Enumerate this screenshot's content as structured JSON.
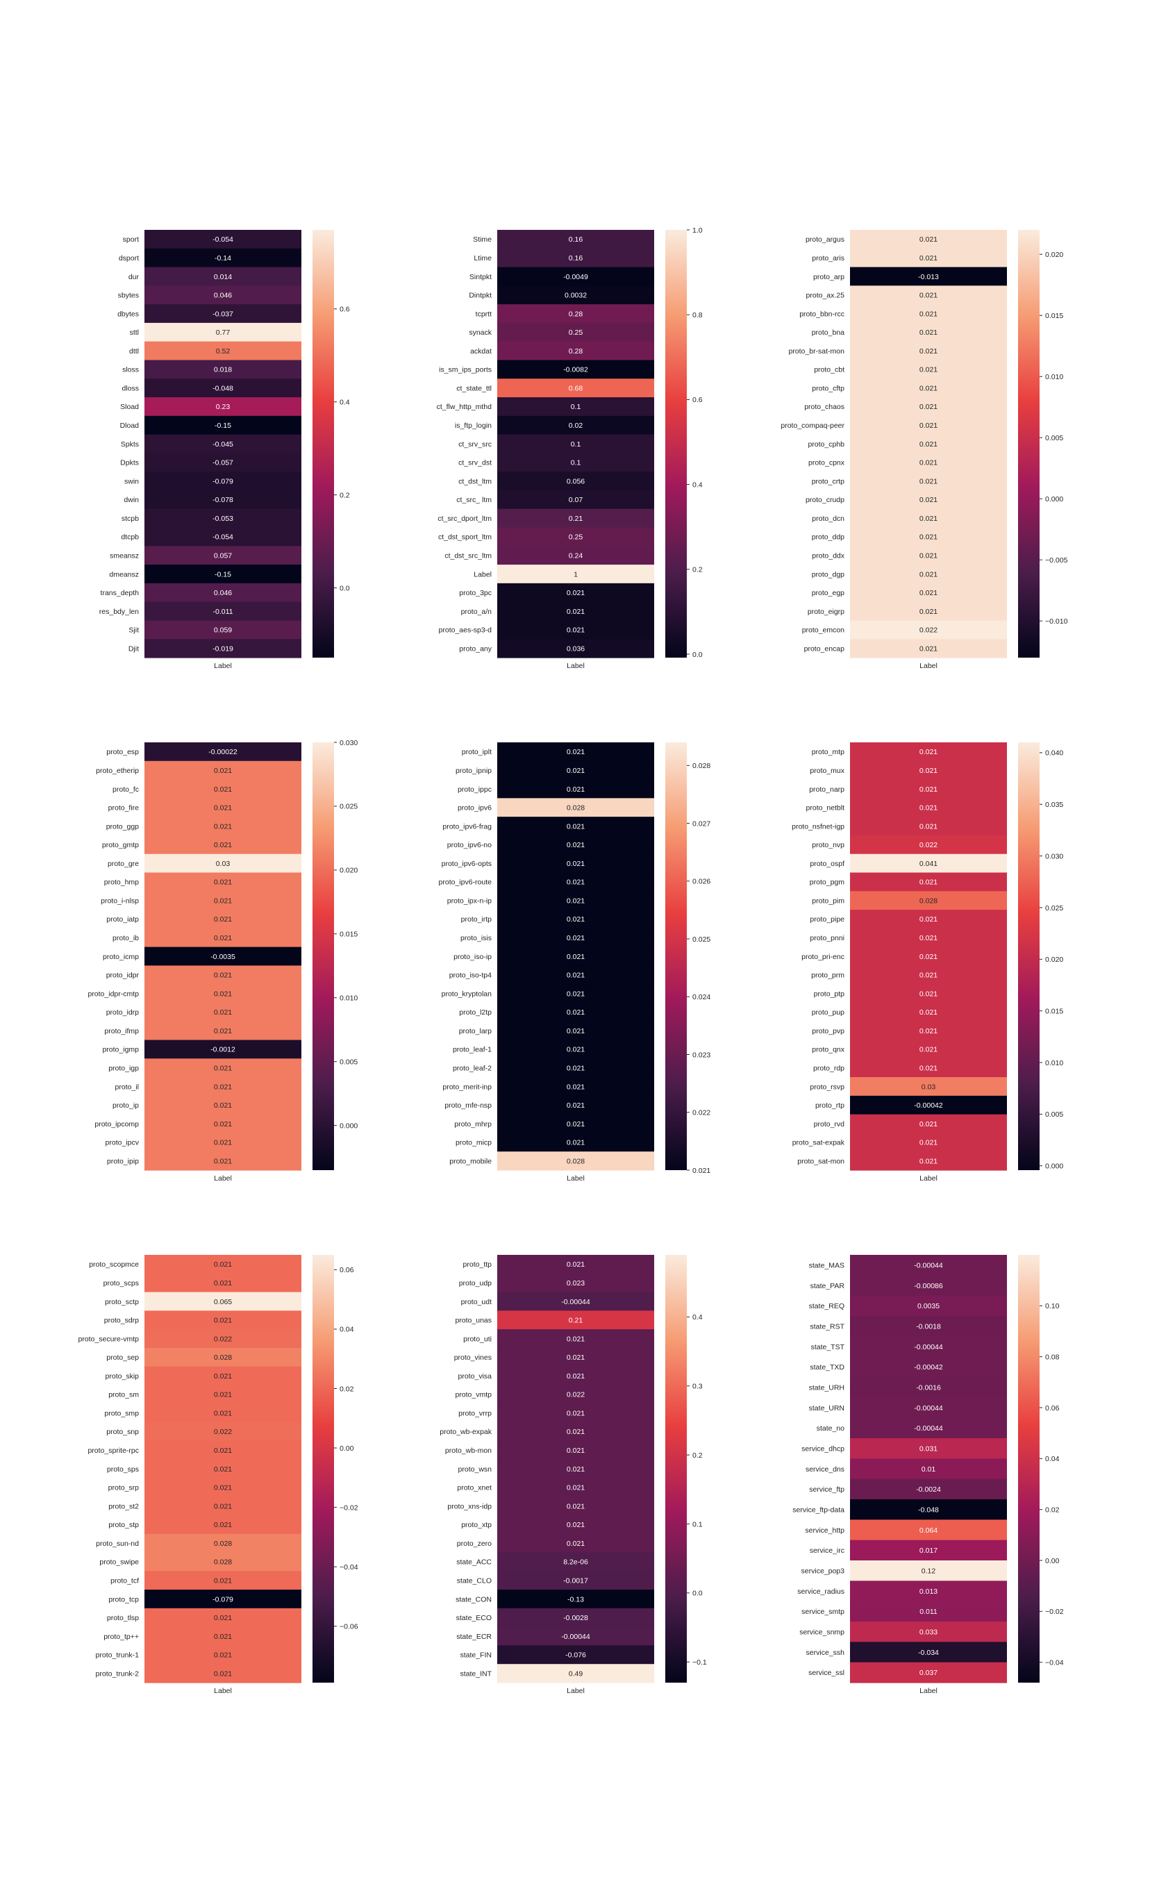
{
  "colormap": [
    "#03051a",
    "#4c1d4b",
    "#a11a5b",
    "#e83f3f",
    "#f69c73",
    "#faebdd"
  ],
  "chart_data": [
    {
      "type": "heatmap",
      "xlabel": "Label",
      "rows": [
        "sport",
        "dsport",
        "dur",
        "sbytes",
        "dbytes",
        "sttl",
        "dttl",
        "sloss",
        "dloss",
        "Sload",
        "Dload",
        "Spkts",
        "Dpkts",
        "swin",
        "dwin",
        "stcpb",
        "dtcpb",
        "smeansz",
        "dmeansz",
        "trans_depth",
        "res_bdy_len",
        "Sjit",
        "Djit"
      ],
      "values": [
        -0.054,
        -0.14,
        0.014,
        0.046,
        -0.037,
        0.77,
        0.52,
        0.018,
        -0.048,
        0.23,
        -0.15,
        -0.045,
        -0.057,
        -0.079,
        -0.078,
        -0.053,
        -0.054,
        0.057,
        -0.15,
        0.046,
        -0.011,
        0.059,
        -0.019
      ],
      "labels": [
        "-0.054",
        "-0.14",
        "0.014",
        "0.046",
        "-0.037",
        "0.77",
        "0.52",
        "0.018",
        "-0.048",
        "0.23",
        "-0.15",
        "-0.045",
        "-0.057",
        "-0.079",
        "-0.078",
        "-0.053",
        "-0.054",
        "0.057",
        "-0.15",
        "0.046",
        "-0.011",
        "0.059",
        "-0.019"
      ],
      "vmin": -0.15,
      "vmax": 0.77,
      "ticks": [
        0.0,
        0.2,
        0.4,
        0.6
      ],
      "tick_labels": [
        "0.0",
        "0.2",
        "0.4",
        "0.6"
      ]
    },
    {
      "type": "heatmap",
      "xlabel": "Label",
      "rows": [
        "Stime",
        "Ltime",
        "Sintpkt",
        "Dintpkt",
        "tcprtt",
        "synack",
        "ackdat",
        "is_sm_ips_ports",
        "ct_state_ttl",
        "ct_flw_http_mthd",
        "is_ftp_login",
        "ct_srv_src",
        "ct_srv_dst",
        "ct_dst_ltm",
        "ct_src_ ltm",
        "ct_src_dport_ltm",
        "ct_dst_sport_ltm",
        "ct_dst_src_ltm",
        "Label",
        "proto_3pc",
        "proto_a/n",
        "proto_aes-sp3-d",
        "proto_any"
      ],
      "values": [
        0.16,
        0.16,
        -0.0049,
        0.0032,
        0.28,
        0.25,
        0.28,
        -0.0082,
        0.68,
        0.1,
        0.02,
        0.1,
        0.1,
        0.056,
        0.07,
        0.21,
        0.25,
        0.24,
        1,
        0.021,
        0.021,
        0.021,
        0.036
      ],
      "labels": [
        "0.16",
        "0.16",
        "-0.0049",
        "0.0032",
        "0.28",
        "0.25",
        "0.28",
        "-0.0082",
        "0.68",
        "0.1",
        "0.02",
        "0.1",
        "0.1",
        "0.056",
        "0.07",
        "0.21",
        "0.25",
        "0.24",
        "1",
        "0.021",
        "0.021",
        "0.021",
        "0.036"
      ],
      "vmin": -0.0082,
      "vmax": 1.0,
      "ticks": [
        0.0,
        0.2,
        0.4,
        0.6,
        0.8,
        1.0
      ],
      "tick_labels": [
        "0.0",
        "0.2",
        "0.4",
        "0.6",
        "0.8",
        "1.0"
      ]
    },
    {
      "type": "heatmap",
      "xlabel": "Label",
      "rows": [
        "proto_argus",
        "proto_aris",
        "proto_arp",
        "proto_ax.25",
        "proto_bbn-rcc",
        "proto_bna",
        "proto_br-sat-mon",
        "proto_cbt",
        "proto_cftp",
        "proto_chaos",
        "proto_compaq-peer",
        "proto_cphb",
        "proto_cpnx",
        "proto_crtp",
        "proto_crudp",
        "proto_dcn",
        "proto_ddp",
        "proto_ddx",
        "proto_dgp",
        "proto_egp",
        "proto_eigrp",
        "proto_emcon",
        "proto_encap"
      ],
      "values": [
        0.021,
        0.021,
        -0.013,
        0.021,
        0.021,
        0.021,
        0.021,
        0.021,
        0.021,
        0.021,
        0.021,
        0.021,
        0.021,
        0.021,
        0.021,
        0.021,
        0.021,
        0.021,
        0.021,
        0.021,
        0.021,
        0.022,
        0.021
      ],
      "labels": [
        "0.021",
        "0.021",
        "-0.013",
        "0.021",
        "0.021",
        "0.021",
        "0.021",
        "0.021",
        "0.021",
        "0.021",
        "0.021",
        "0.021",
        "0.021",
        "0.021",
        "0.021",
        "0.021",
        "0.021",
        "0.021",
        "0.021",
        "0.021",
        "0.021",
        "0.022",
        "0.021"
      ],
      "vmin": -0.013,
      "vmax": 0.022,
      "ticks": [
        -0.01,
        -0.005,
        0.0,
        0.005,
        0.01,
        0.015,
        0.02
      ],
      "tick_labels": [
        "−0.010",
        "−0.005",
        "0.000",
        "0.005",
        "0.010",
        "0.015",
        "0.020"
      ]
    },
    {
      "type": "heatmap",
      "xlabel": "Label",
      "rows": [
        "proto_esp",
        "proto_etherip",
        "proto_fc",
        "proto_fire",
        "proto_ggp",
        "proto_gmtp",
        "proto_gre",
        "proto_hmp",
        "proto_i-nlsp",
        "proto_iatp",
        "proto_ib",
        "proto_icmp",
        "proto_idpr",
        "proto_idpr-cmtp",
        "proto_idrp",
        "proto_ifmp",
        "proto_igmp",
        "proto_igp",
        "proto_il",
        "proto_ip",
        "proto_ipcomp",
        "proto_ipcv",
        "proto_ipip"
      ],
      "values": [
        -0.00022,
        0.021,
        0.021,
        0.021,
        0.021,
        0.021,
        0.03,
        0.021,
        0.021,
        0.021,
        0.021,
        -0.0035,
        0.021,
        0.021,
        0.021,
        0.021,
        -0.0012,
        0.021,
        0.021,
        0.021,
        0.021,
        0.021,
        0.021
      ],
      "labels": [
        "-0.00022",
        "0.021",
        "0.021",
        "0.021",
        "0.021",
        "0.021",
        "0.03",
        "0.021",
        "0.021",
        "0.021",
        "0.021",
        "-0.0035",
        "0.021",
        "0.021",
        "0.021",
        "0.021",
        "-0.0012",
        "0.021",
        "0.021",
        "0.021",
        "0.021",
        "0.021",
        "0.021"
      ],
      "vmin": -0.0035,
      "vmax": 0.03,
      "ticks": [
        0.0,
        0.005,
        0.01,
        0.015,
        0.02,
        0.025,
        0.03
      ],
      "tick_labels": [
        "0.000",
        "0.005",
        "0.010",
        "0.015",
        "0.020",
        "0.025",
        "0.030"
      ]
    },
    {
      "type": "heatmap",
      "xlabel": "Label",
      "rows": [
        "proto_iplt",
        "proto_ipnip",
        "proto_ippc",
        "proto_ipv6",
        "proto_ipv6-frag",
        "proto_ipv6-no",
        "proto_ipv6-opts",
        "proto_ipv6-route",
        "proto_ipx-n-ip",
        "proto_irtp",
        "proto_isis",
        "proto_iso-ip",
        "proto_iso-tp4",
        "proto_kryptolan",
        "proto_l2tp",
        "proto_larp",
        "proto_leaf-1",
        "proto_leaf-2",
        "proto_merit-inp",
        "proto_mfe-nsp",
        "proto_mhrp",
        "proto_micp",
        "proto_mobile"
      ],
      "values": [
        0.021,
        0.021,
        0.021,
        0.028,
        0.021,
        0.021,
        0.021,
        0.021,
        0.021,
        0.021,
        0.021,
        0.021,
        0.021,
        0.021,
        0.021,
        0.021,
        0.021,
        0.021,
        0.021,
        0.021,
        0.021,
        0.021,
        0.028
      ],
      "labels": [
        "0.021",
        "0.021",
        "0.021",
        "0.028",
        "0.021",
        "0.021",
        "0.021",
        "0.021",
        "0.021",
        "0.021",
        "0.021",
        "0.021",
        "0.021",
        "0.021",
        "0.021",
        "0.021",
        "0.021",
        "0.021",
        "0.021",
        "0.021",
        "0.021",
        "0.021",
        "0.028"
      ],
      "vmin": 0.021,
      "vmax": 0.0284,
      "ticks": [
        0.021,
        0.022,
        0.023,
        0.024,
        0.025,
        0.026,
        0.027,
        0.028
      ],
      "tick_labels": [
        "0.021",
        "0.022",
        "0.023",
        "0.024",
        "0.025",
        "0.026",
        "0.027",
        "0.028"
      ]
    },
    {
      "type": "heatmap",
      "xlabel": "Label",
      "rows": [
        "proto_mtp",
        "proto_mux",
        "proto_narp",
        "proto_netblt",
        "proto_nsfnet-igp",
        "proto_nvp",
        "proto_ospf",
        "proto_pgm",
        "proto_pim",
        "proto_pipe",
        "proto_pnni",
        "proto_pri-enc",
        "proto_prm",
        "proto_ptp",
        "proto_pup",
        "proto_pvp",
        "proto_qnx",
        "proto_rdp",
        "proto_rsvp",
        "proto_rtp",
        "proto_rvd",
        "proto_sat-expak",
        "proto_sat-mon"
      ],
      "values": [
        0.021,
        0.021,
        0.021,
        0.021,
        0.021,
        0.022,
        0.041,
        0.021,
        0.028,
        0.021,
        0.021,
        0.021,
        0.021,
        0.021,
        0.021,
        0.021,
        0.021,
        0.021,
        0.03,
        -0.00042,
        0.021,
        0.021,
        0.021
      ],
      "labels": [
        "0.021",
        "0.021",
        "0.021",
        "0.021",
        "0.021",
        "0.022",
        "0.041",
        "0.021",
        "0.028",
        "0.021",
        "0.021",
        "0.021",
        "0.021",
        "0.021",
        "0.021",
        "0.021",
        "0.021",
        "0.021",
        "0.03",
        "-0.00042",
        "0.021",
        "0.021",
        "0.021"
      ],
      "vmin": -0.00042,
      "vmax": 0.041,
      "ticks": [
        0.0,
        0.005,
        0.01,
        0.015,
        0.02,
        0.025,
        0.03,
        0.035,
        0.04
      ],
      "tick_labels": [
        "0.000",
        "0.005",
        "0.010",
        "0.015",
        "0.020",
        "0.025",
        "0.030",
        "0.035",
        "0.040"
      ]
    },
    {
      "type": "heatmap",
      "xlabel": "Label",
      "rows": [
        "proto_scopmce",
        "proto_scps",
        "proto_sctp",
        "proto_sdrp",
        "proto_secure-vmtp",
        "proto_sep",
        "proto_skip",
        "proto_sm",
        "proto_smp",
        "proto_snp",
        "proto_sprite-rpc",
        "proto_sps",
        "proto_srp",
        "proto_st2",
        "proto_stp",
        "proto_sun-nd",
        "proto_swipe",
        "proto_tcf",
        "proto_tcp",
        "proto_tlsp",
        "proto_tp++",
        "proto_trunk-1",
        "proto_trunk-2"
      ],
      "values": [
        0.021,
        0.021,
        0.065,
        0.021,
        0.022,
        0.028,
        0.021,
        0.021,
        0.021,
        0.022,
        0.021,
        0.021,
        0.021,
        0.021,
        0.021,
        0.028,
        0.028,
        0.021,
        -0.079,
        0.021,
        0.021,
        0.021,
        0.021
      ],
      "labels": [
        "0.021",
        "0.021",
        "0.065",
        "0.021",
        "0.022",
        "0.028",
        "0.021",
        "0.021",
        "0.021",
        "0.022",
        "0.021",
        "0.021",
        "0.021",
        "0.021",
        "0.021",
        "0.028",
        "0.028",
        "0.021",
        "-0.079",
        "0.021",
        "0.021",
        "0.021",
        "0.021"
      ],
      "vmin": -0.079,
      "vmax": 0.065,
      "ticks": [
        -0.06,
        -0.04,
        -0.02,
        0.0,
        0.02,
        0.04,
        0.06
      ],
      "tick_labels": [
        "−0.06",
        "−0.04",
        "−0.02",
        "0.00",
        "0.02",
        "0.04",
        "0.06"
      ]
    },
    {
      "type": "heatmap",
      "xlabel": "Label",
      "rows": [
        "proto_ttp",
        "proto_udp",
        "proto_udt",
        "proto_unas",
        "proto_uti",
        "proto_vines",
        "proto_visa",
        "proto_vmtp",
        "proto_vrrp",
        "proto_wb-expak",
        "proto_wb-mon",
        "proto_wsn",
        "proto_xnet",
        "proto_xns-idp",
        "proto_xtp",
        "proto_zero",
        "state_ACC",
        "state_CLO",
        "state_CON",
        "state_ECO",
        "state_ECR",
        "state_FIN",
        "state_INT"
      ],
      "values": [
        0.021,
        0.023,
        -0.00044,
        0.21,
        0.021,
        0.021,
        0.021,
        0.022,
        0.021,
        0.021,
        0.021,
        0.021,
        0.021,
        0.021,
        0.021,
        0.021,
        8.2e-06,
        -0.0017,
        -0.13,
        -0.0028,
        -0.00044,
        -0.076,
        0.49
      ],
      "labels": [
        "0.021",
        "0.023",
        "-0.00044",
        "0.21",
        "0.021",
        "0.021",
        "0.021",
        "0.022",
        "0.021",
        "0.021",
        "0.021",
        "0.021",
        "0.021",
        "0.021",
        "0.021",
        "0.021",
        "8.2e-06",
        "-0.0017",
        "-0.13",
        "-0.0028",
        "-0.00044",
        "-0.076",
        "0.49"
      ],
      "vmin": -0.13,
      "vmax": 0.49,
      "ticks": [
        -0.1,
        0.0,
        0.1,
        0.2,
        0.3,
        0.4
      ],
      "tick_labels": [
        "−0.1",
        "0.0",
        "0.1",
        "0.2",
        "0.3",
        "0.4"
      ]
    },
    {
      "type": "heatmap",
      "xlabel": "Label",
      "rows": [
        "state_MAS",
        "state_PAR",
        "state_REQ",
        "state_RST",
        "state_TST",
        "state_TXD",
        "state_URH",
        "state_URN",
        "state_no",
        "service_dhcp",
        "service_dns",
        "service_ftp",
        "service_ftp-data",
        "service_http",
        "service_irc",
        "service_pop3",
        "service_radius",
        "service_smtp",
        "service_snmp",
        "service_ssh",
        "service_ssl"
      ],
      "values": [
        -0.00044,
        -0.00086,
        0.0035,
        -0.0018,
        -0.00044,
        -0.00042,
        -0.0016,
        -0.00044,
        -0.00044,
        0.031,
        0.01,
        -0.0024,
        -0.048,
        0.064,
        0.017,
        0.12,
        0.013,
        0.011,
        0.033,
        -0.034,
        0.037
      ],
      "labels": [
        "-0.00044",
        "-0.00086",
        "0.0035",
        "-0.0018",
        "-0.00044",
        "-0.00042",
        "-0.0016",
        "-0.00044",
        "-0.00044",
        "0.031",
        "0.01",
        "-0.0024",
        "-0.048",
        "0.064",
        "0.017",
        "0.12",
        "0.013",
        "0.011",
        "0.033",
        "-0.034",
        "0.037"
      ],
      "vmin": -0.048,
      "vmax": 0.12,
      "ticks": [
        -0.04,
        -0.02,
        0.0,
        0.02,
        0.04,
        0.06,
        0.08,
        0.1
      ],
      "tick_labels": [
        "−0.04",
        "−0.02",
        "0.00",
        "0.02",
        "0.04",
        "0.06",
        "0.08",
        "0.10"
      ]
    }
  ]
}
